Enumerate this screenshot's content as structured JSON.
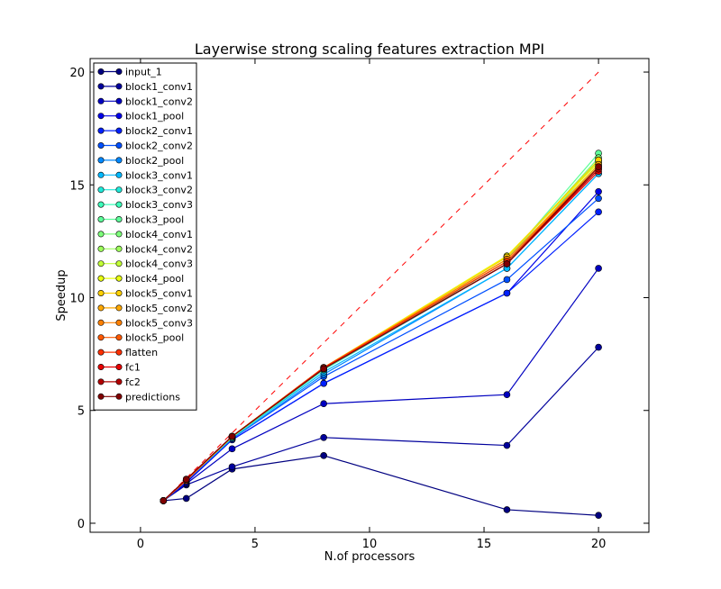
{
  "chart_data": {
    "type": "line",
    "title": "Layerwise strong scaling features extraction MPI",
    "xlabel": "N.of processors",
    "ylabel": "Speedup",
    "xlim": [
      -2.2,
      22.2
    ],
    "ylim": [
      -0.4,
      20.6
    ],
    "x_ticks": [
      "0",
      "5",
      "10",
      "15",
      "20"
    ],
    "y_ticks": [
      "0",
      "5",
      "10",
      "15",
      "20"
    ],
    "grid": false,
    "legend_position": "upper-left",
    "x": [
      1,
      2,
      4,
      8,
      16,
      20
    ],
    "ideal": {
      "x": [
        1,
        20
      ],
      "y": [
        1,
        20
      ],
      "color": "#ff0000",
      "style": "dashed"
    },
    "series": [
      {
        "name": "input_1",
        "color": "#000080",
        "values": [
          1.0,
          1.1,
          2.4,
          3.0,
          0.6,
          0.35
        ]
      },
      {
        "name": "block1_conv1",
        "color": "#00009c",
        "values": [
          1.0,
          1.7,
          2.5,
          3.8,
          3.45,
          7.8
        ]
      },
      {
        "name": "block1_conv2",
        "color": "#0000c0",
        "values": [
          1.0,
          1.75,
          3.3,
          5.3,
          5.7,
          11.3
        ]
      },
      {
        "name": "block1_pool",
        "color": "#0000e8",
        "values": [
          1.0,
          1.8,
          3.7,
          6.2,
          10.2,
          14.7
        ]
      },
      {
        "name": "block2_conv1",
        "color": "#0020ff",
        "values": [
          1.0,
          1.85,
          3.7,
          6.2,
          10.2,
          13.8
        ]
      },
      {
        "name": "block2_conv2",
        "color": "#0050ff",
        "values": [
          1.0,
          1.9,
          3.75,
          6.5,
          10.8,
          14.4
        ]
      },
      {
        "name": "block2_pool",
        "color": "#0088ff",
        "values": [
          1.0,
          1.9,
          3.75,
          6.6,
          11.3,
          15.5
        ]
      },
      {
        "name": "block3_conv1",
        "color": "#00b8ff",
        "values": [
          1.0,
          1.9,
          3.8,
          6.7,
          11.3,
          15.5
        ]
      },
      {
        "name": "block3_conv2",
        "color": "#1fe8d8",
        "values": [
          1.0,
          1.9,
          3.8,
          6.8,
          11.5,
          16.1
        ]
      },
      {
        "name": "block3_conv3",
        "color": "#3dffba",
        "values": [
          1.0,
          1.9,
          3.8,
          6.8,
          11.6,
          15.9
        ]
      },
      {
        "name": "block3_pool",
        "color": "#5dff9a",
        "values": [
          1.0,
          1.9,
          3.8,
          6.9,
          11.7,
          16.4
        ]
      },
      {
        "name": "block4_conv1",
        "color": "#7dff7a",
        "values": [
          1.0,
          1.9,
          3.85,
          6.9,
          11.7,
          16.2
        ]
      },
      {
        "name": "block4_conv2",
        "color": "#9cff5a",
        "values": [
          1.0,
          1.9,
          3.85,
          6.9,
          11.8,
          16.1
        ]
      },
      {
        "name": "block4_conv3",
        "color": "#c1ff36",
        "values": [
          1.0,
          1.9,
          3.85,
          6.9,
          11.8,
          16.0
        ]
      },
      {
        "name": "block4_pool",
        "color": "#e8ff0f",
        "values": [
          1.0,
          1.9,
          3.85,
          6.9,
          11.85,
          16.0
        ]
      },
      {
        "name": "block5_conv1",
        "color": "#ffd000",
        "values": [
          1.0,
          1.9,
          3.85,
          6.9,
          11.8,
          16.1
        ]
      },
      {
        "name": "block5_conv2",
        "color": "#ffa800",
        "values": [
          1.0,
          1.9,
          3.85,
          6.9,
          11.7,
          15.9
        ]
      },
      {
        "name": "block5_conv3",
        "color": "#ff8000",
        "values": [
          1.0,
          1.9,
          3.85,
          6.9,
          11.7,
          15.8
        ]
      },
      {
        "name": "block5_pool",
        "color": "#ff5800",
        "values": [
          1.0,
          1.9,
          3.85,
          6.9,
          11.6,
          15.8
        ]
      },
      {
        "name": "flatten",
        "color": "#ff3000",
        "values": [
          1.0,
          1.95,
          3.85,
          6.9,
          11.6,
          15.7
        ]
      },
      {
        "name": "fc1",
        "color": "#e80000",
        "values": [
          1.0,
          1.95,
          3.85,
          6.85,
          11.5,
          15.6
        ]
      },
      {
        "name": "fc2",
        "color": "#b20000",
        "values": [
          1.0,
          1.95,
          3.85,
          6.85,
          11.5,
          15.7
        ]
      },
      {
        "name": "predictions",
        "color": "#800000",
        "values": [
          1.0,
          1.95,
          3.85,
          6.85,
          11.5,
          15.8
        ]
      }
    ]
  }
}
